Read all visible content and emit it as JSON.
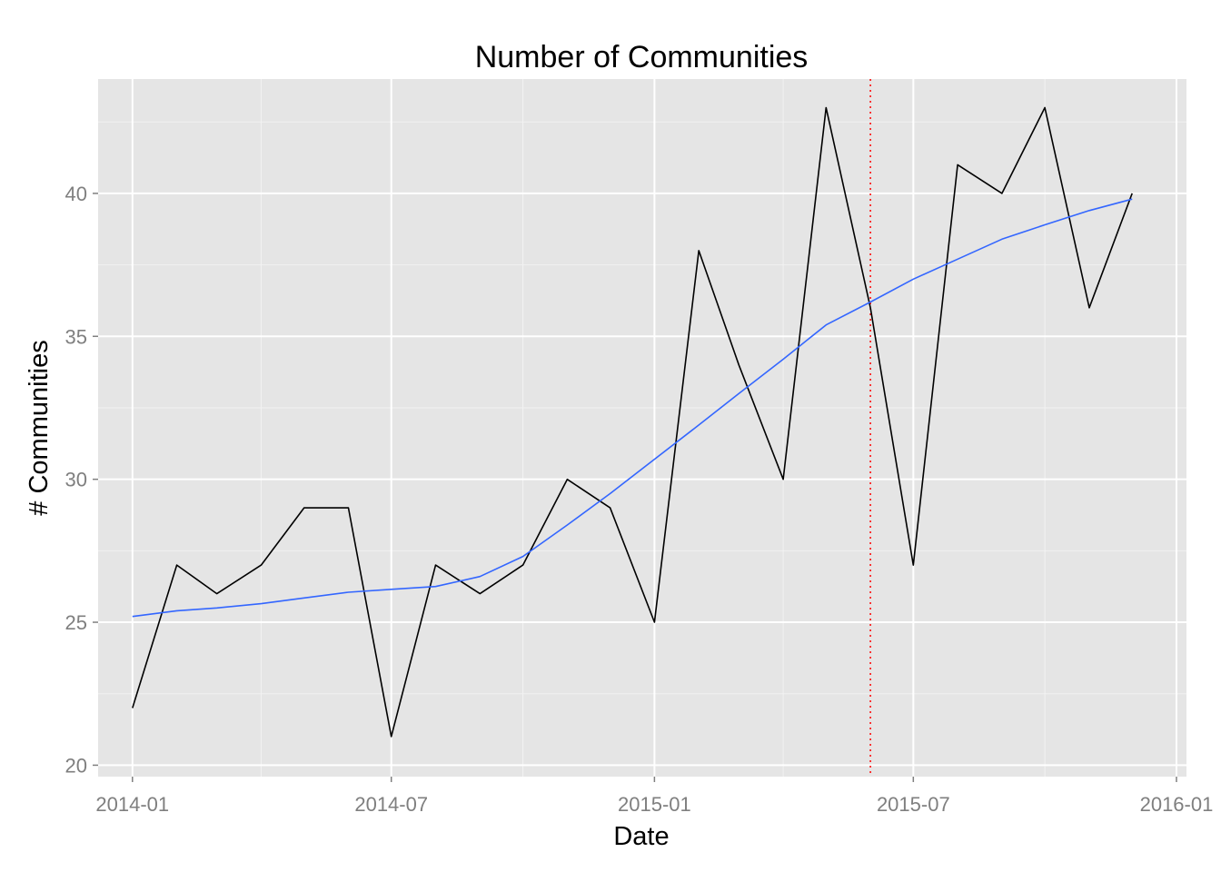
{
  "chart_data": {
    "type": "line",
    "title": "Number of Communities",
    "xlabel": "Date",
    "ylabel": "# Communities",
    "x_tick_labels": [
      "2014-01",
      "2014-07",
      "2015-01",
      "2015-07",
      "2016-01"
    ],
    "x_ticks": [
      "2014-01-01",
      "2014-07-01",
      "2015-01-01",
      "2015-07-01",
      "2016-01-01"
    ],
    "y_tick_labels": [
      "20",
      "25",
      "30",
      "35",
      "40"
    ],
    "y_ticks": [
      20,
      25,
      30,
      35,
      40
    ],
    "xlim": [
      "2013-12-08",
      "2016-01-08"
    ],
    "ylim": [
      19.6,
      44.0
    ],
    "grid": true,
    "series": [
      {
        "kind": "line",
        "color": "#000000",
        "x": [
          "2014-01-01",
          "2014-02-01",
          "2014-03-01",
          "2014-04-01",
          "2014-05-01",
          "2014-06-01",
          "2014-07-01",
          "2014-08-01",
          "2014-09-01",
          "2014-10-01",
          "2014-11-01",
          "2014-12-01",
          "2015-01-01",
          "2015-02-01",
          "2015-03-01",
          "2015-04-01",
          "2015-05-01",
          "2015-06-01",
          "2015-07-01",
          "2015-08-01",
          "2015-09-01",
          "2015-10-01",
          "2015-11-01",
          "2015-12-01"
        ],
        "values": [
          22,
          27,
          26,
          27,
          29,
          29,
          21,
          27,
          26,
          27,
          30,
          29,
          25,
          38,
          34,
          30,
          43,
          36,
          27,
          41,
          40,
          43,
          36,
          40
        ]
      },
      {
        "kind": "smooth",
        "color": "#3366ff",
        "x": [
          "2014-01-01",
          "2014-02-01",
          "2014-03-01",
          "2014-04-01",
          "2014-05-01",
          "2014-06-01",
          "2014-07-01",
          "2014-08-01",
          "2014-09-01",
          "2014-10-01",
          "2014-11-01",
          "2014-12-01",
          "2015-01-01",
          "2015-02-01",
          "2015-03-01",
          "2015-04-01",
          "2015-05-01",
          "2015-06-01",
          "2015-07-01",
          "2015-08-01",
          "2015-09-01",
          "2015-10-01",
          "2015-11-01",
          "2015-12-01"
        ],
        "values": [
          25.2,
          25.4,
          25.5,
          25.65,
          25.85,
          26.05,
          26.15,
          26.25,
          26.6,
          27.3,
          28.4,
          29.5,
          30.7,
          31.9,
          33.0,
          34.2,
          35.4,
          36.2,
          37.0,
          37.7,
          38.4,
          38.9,
          39.4,
          39.8
        ]
      }
    ],
    "reference_line": {
      "x": "2015-06-01",
      "color": "#ff0000",
      "style": "dotted"
    }
  }
}
